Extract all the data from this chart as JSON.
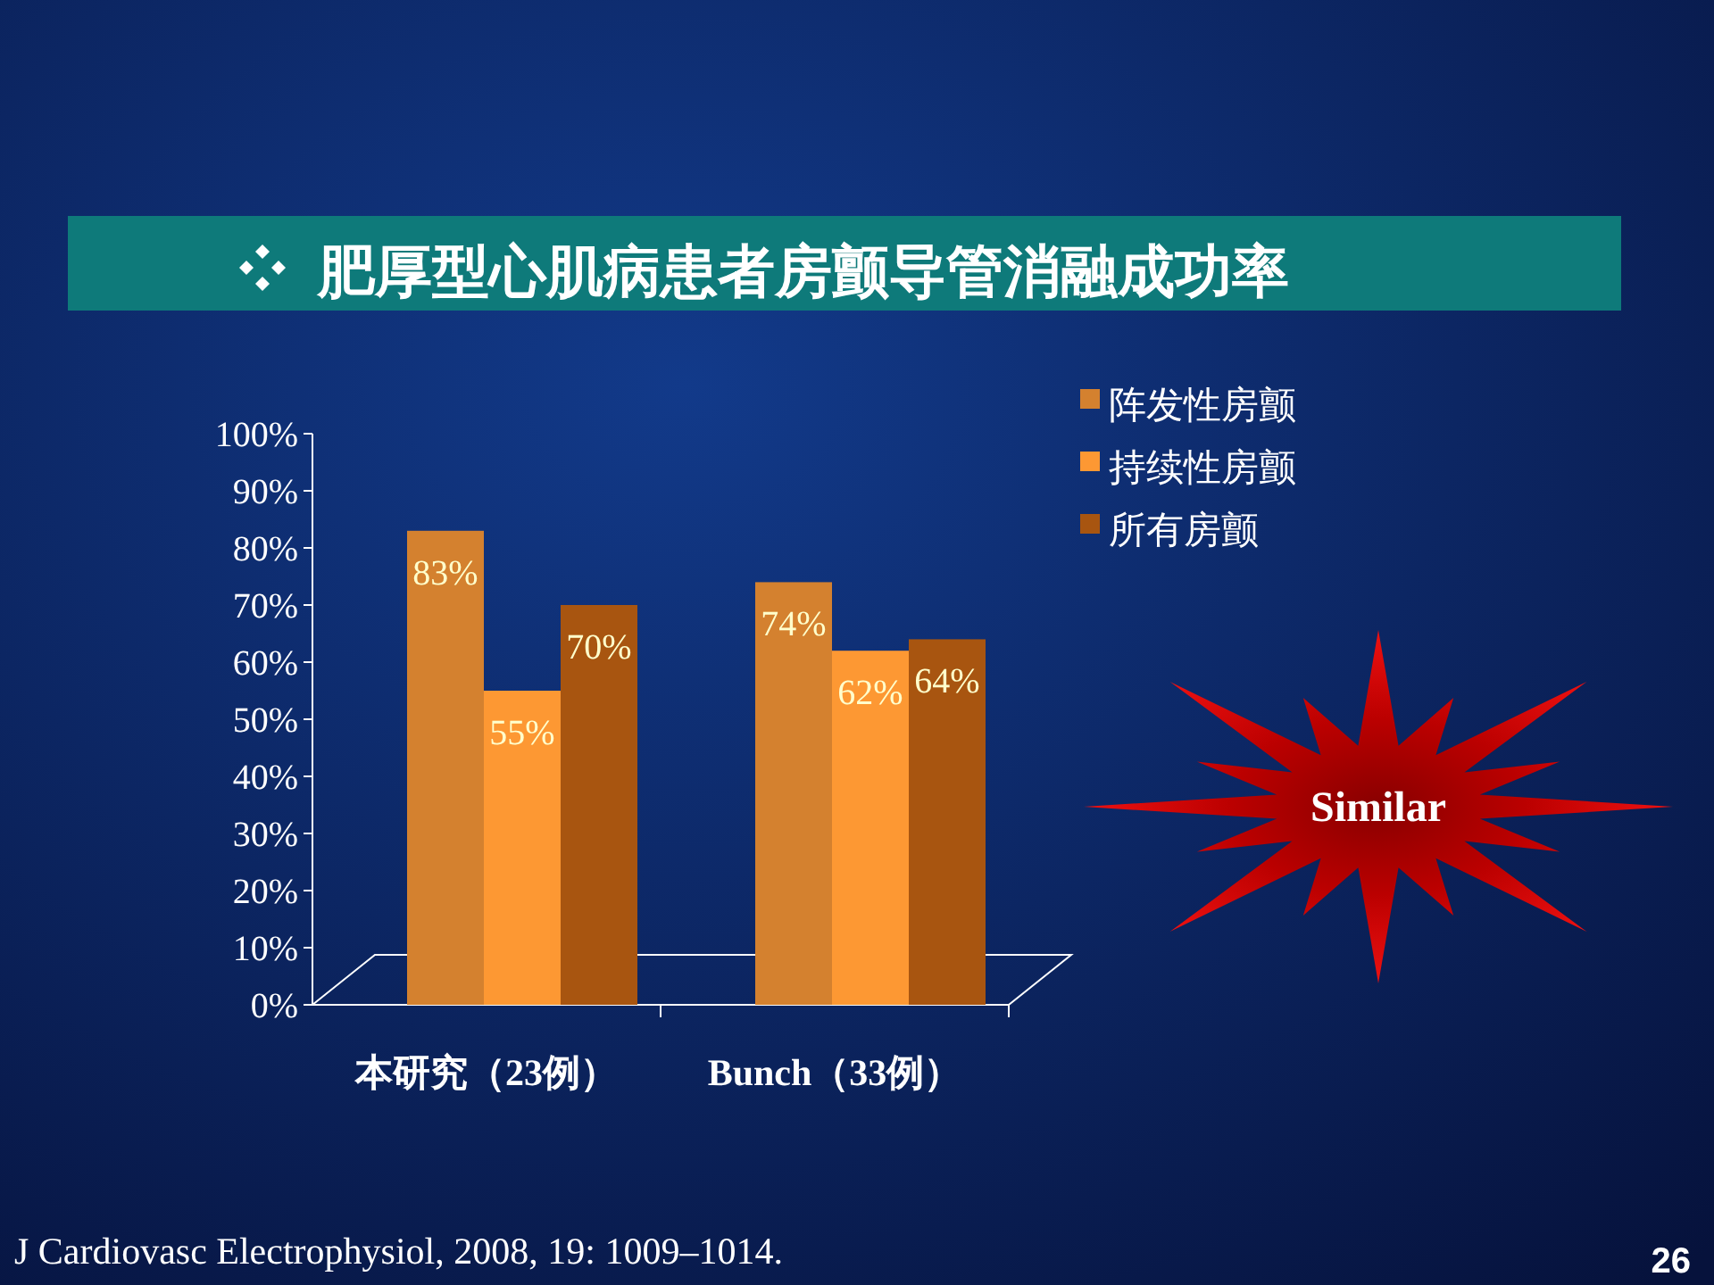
{
  "chart_data": {
    "type": "bar",
    "title": "肥厚型心肌病患者房颤导管消融成功率",
    "categories": [
      "本研究（23例）",
      "Bunch（33例）"
    ],
    "series": [
      {
        "name": "阵发性房颤",
        "color": "#d4812f",
        "values": [
          83,
          74
        ],
        "value_labels": [
          "83%",
          "74%"
        ]
      },
      {
        "name": "持续性房颤",
        "color": "#fd9833",
        "values": [
          55,
          62
        ],
        "value_labels": [
          "55%",
          "62%"
        ]
      },
      {
        "name": "所有房颤",
        "color": "#a85510",
        "values": [
          70,
          64
        ],
        "value_labels": [
          "70%",
          "64%"
        ]
      }
    ],
    "ylim": [
      0,
      100
    ],
    "yticks": [
      {
        "value": 0,
        "label": "0%"
      },
      {
        "value": 10,
        "label": "10%"
      },
      {
        "value": 20,
        "label": "20%"
      },
      {
        "value": 30,
        "label": "30%"
      },
      {
        "value": 40,
        "label": "40%"
      },
      {
        "value": 50,
        "label": "50%"
      },
      {
        "value": 60,
        "label": "60%"
      },
      {
        "value": 70,
        "label": "70%"
      },
      {
        "value": 80,
        "label": "80%"
      },
      {
        "value": 90,
        "label": "90%"
      },
      {
        "value": 100,
        "label": "100%"
      }
    ],
    "legend": "right",
    "annotations": [
      "Similar",
      "J Cardiovasc Electrophysiol, 2008, 19: 1009–1014.",
      "26"
    ]
  }
}
